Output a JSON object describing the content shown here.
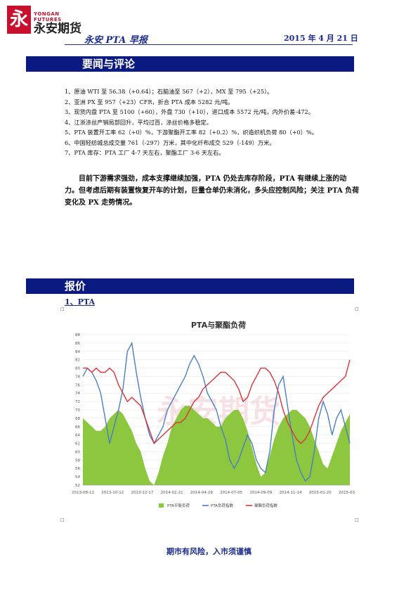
{
  "header": {
    "logo_sub": "YONGAN FUTURES",
    "logo_name": "永安期货",
    "title": "永安 PTA 早报",
    "date": "2015 年 4 月 21 日"
  },
  "section1": {
    "title": "要闻与评论",
    "items": [
      "1、原油 WTI 至 56.38（+0.64）；石脑油至 567（+2），MX 至 795（+25）。",
      "2、亚洲 PX 至 957（+23）CFR，折合 PTA 成本 5282 元/吨。",
      "3、现货内盘 PTA 至 5100（+60），外盘 730（+10），进口成本 5572 元/吨，内外价差-472。",
      "4、江浙涤丝产销局部回升，平均过百，涤丝价格多稳定。",
      "5、PTA 装置开工率 62（+0）%，下游聚酯开工率 82（+0.2）%，织造织机负荷 80（+0）%。",
      "6、中国轻纺城总成交量 761（-297）万米，其中化纤布成交 529（-149）万米。",
      "7、PTA 库存：PTA 工厂 4-7 天左右，聚酯工厂 3-6 天左右。"
    ],
    "summary": "目前下游需求强劲，成本支撑继续加强，PTA 仍处去库存阶段，PTA 有继续上涨的动力。但考虑后期有装置恢复开车的计划，巨量仓单仍未消化，多头应控制风险；关注 PTA 负荷变化及 PX 走势情况。"
  },
  "section2": {
    "title": "报价",
    "subtitle": "1、PTA"
  },
  "chart_data": {
    "type": "line",
    "title": "PTA与聚酯负荷",
    "ylim": [
      52,
      88
    ],
    "yticks": [
      52,
      54,
      56,
      58,
      60,
      62,
      64,
      66,
      68,
      70,
      72,
      74,
      76,
      78,
      80,
      82,
      84,
      86,
      88
    ],
    "xticks": [
      "2013-08-12",
      "2013-10-12",
      "2013-12-17",
      "2014-02-21",
      "2014-04-29",
      "2014-07-05",
      "2014-09-09",
      "2014-11-14",
      "2015-01-20",
      "2015-03-28"
    ],
    "series": [
      {
        "name": "PTA平衡负荷",
        "kind": "area",
        "color": "#8dc63f",
        "values": [
          68,
          67,
          66,
          65,
          65,
          66,
          68,
          69,
          70,
          69,
          67,
          65,
          62,
          60,
          56,
          53,
          52,
          55,
          59,
          62,
          66,
          68,
          70,
          71,
          71,
          70,
          69,
          68,
          68,
          67,
          66,
          66,
          68,
          69,
          70,
          70,
          68,
          65,
          61,
          57,
          54,
          55,
          59,
          63,
          66,
          68,
          69,
          70,
          70,
          69,
          68,
          66,
          63,
          60,
          57,
          56,
          59,
          62,
          65,
          67,
          69
        ]
      },
      {
        "name": "PTA负荷指数",
        "kind": "line",
        "color": "#4a7fc1",
        "values": [
          78,
          80,
          79,
          77,
          74,
          68,
          62,
          66,
          70,
          75,
          84,
          86,
          79,
          73,
          68,
          64,
          62,
          64,
          66,
          70,
          72,
          74,
          76,
          78,
          81,
          83,
          81,
          78,
          74,
          72,
          70,
          66,
          63,
          58,
          56,
          58,
          61,
          64,
          62,
          58,
          56,
          55,
          60,
          70,
          76,
          78,
          71,
          64,
          58,
          55,
          53,
          54,
          60,
          68,
          72,
          69,
          64,
          68,
          70,
          66,
          62
        ]
      },
      {
        "name": "聚酯负荷指数",
        "kind": "line",
        "color": "#d9343a",
        "values": [
          80,
          80,
          79,
          80,
          79,
          79,
          80,
          79,
          76,
          74,
          72,
          73,
          72,
          71,
          68,
          65,
          62,
          63,
          64,
          65,
          66,
          67,
          67,
          68,
          70,
          72,
          73,
          75,
          76,
          77,
          78,
          79,
          79,
          78,
          77,
          75,
          72,
          73,
          76,
          78,
          80,
          80,
          79,
          77,
          74,
          70,
          67,
          65,
          63,
          62,
          63,
          65,
          68,
          71,
          73,
          74,
          75,
          76,
          77,
          78,
          82
        ]
      }
    ],
    "legend_position": "bottom",
    "watermark": "永安期货"
  },
  "footer": "期市有风险，入市须谨慎"
}
